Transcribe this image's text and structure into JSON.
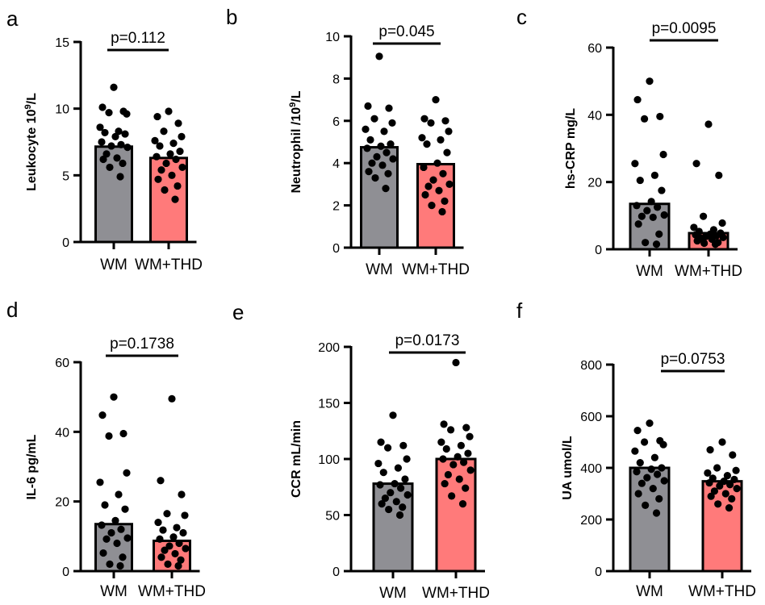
{
  "figure": {
    "bar_colors": [
      "#8f8f94",
      "#ff7a7a"
    ]
  },
  "chart_data": [
    {
      "panel": "a",
      "type": "bar",
      "ylabel": "Leukocyte 10",
      "ylabel_sup": "9",
      "ylabel_suffix": "/L",
      "ylim": [
        0,
        15
      ],
      "yticks": [
        0,
        5,
        10,
        15
      ],
      "categories": [
        "WM",
        "WM+THD"
      ],
      "values": [
        7.15,
        6.3
      ],
      "pvalue": "p=0.112",
      "points": [
        [
          11.6,
          10.1,
          9.8,
          9.7,
          9.6,
          8.6,
          8.3,
          8.2,
          8.1,
          7.9,
          7.5,
          7.3,
          7.2,
          7.1,
          6.6,
          6.3,
          6.2,
          5.9,
          5.6,
          4.9
        ],
        [
          9.8,
          9.4,
          8.9,
          8.3,
          7.9,
          7.6,
          7.4,
          7.2,
          6.8,
          6.6,
          6.4,
          6.2,
          5.9,
          5.6,
          5.4,
          5.0,
          4.7,
          4.2,
          3.9,
          3.2
        ]
      ]
    },
    {
      "panel": "b",
      "type": "bar",
      "ylabel": "Neutrophil  /10",
      "ylabel_sup": "9",
      "ylabel_suffix": "/L",
      "ylim": [
        0,
        10
      ],
      "yticks": [
        0,
        2,
        4,
        6,
        8,
        10
      ],
      "categories": [
        "WM",
        "WM+THD"
      ],
      "values": [
        4.75,
        3.95
      ],
      "pvalue": "p=0.045",
      "points": [
        [
          9.05,
          6.7,
          6.6,
          6.1,
          5.9,
          5.6,
          5.5,
          5.1,
          4.9,
          4.8,
          4.7,
          4.5,
          4.3,
          4.2,
          4.0,
          3.9,
          3.6,
          3.5,
          3.3,
          2.8
        ],
        [
          7.0,
          6.1,
          6.0,
          5.9,
          5.5,
          5.2,
          5.1,
          4.9,
          4.5,
          4.0,
          3.8,
          3.5,
          3.2,
          3.0,
          2.9,
          2.7,
          2.5,
          2.2,
          2.0,
          1.7
        ]
      ]
    },
    {
      "panel": "c",
      "type": "bar",
      "ylabel": "hs-CRP mg/L",
      "ylabel_sup": "",
      "ylabel_suffix": "",
      "ylim": [
        0,
        60
      ],
      "yticks": [
        0,
        20,
        40,
        60
      ],
      "categories": [
        "WM",
        "WM+THD"
      ],
      "values": [
        13.5,
        4.8
      ],
      "pvalue": "p=0.0095",
      "points": [
        [
          50,
          44.5,
          39.5,
          38.8,
          28.2,
          25.5,
          22.0,
          20.5,
          17.5,
          14.2,
          13.0,
          12.5,
          11.5,
          10.2,
          9.8,
          9.5,
          7.5,
          4.5,
          2.0,
          1.5
        ],
        [
          37.2,
          25.5,
          22.0,
          9.8,
          7.8,
          6.5,
          5.8,
          5.3,
          4.8,
          4.5,
          4.3,
          4.0,
          3.8,
          3.5,
          3.3,
          3.0,
          2.5,
          2.0,
          1.8,
          1.5
        ]
      ]
    },
    {
      "panel": "d",
      "type": "bar",
      "ylabel": "IL-6 pg/mL",
      "ylabel_sup": "",
      "ylabel_suffix": "",
      "ylim": [
        0,
        60
      ],
      "yticks": [
        0,
        20,
        40,
        60
      ],
      "categories": [
        "WM",
        "WM+THD"
      ],
      "values": [
        13.5,
        8.7
      ],
      "pvalue": "p=0.1738",
      "points": [
        [
          50,
          44.8,
          39.5,
          38.8,
          28.2,
          25.5,
          22.0,
          19.0,
          17.8,
          14.5,
          13.2,
          12.0,
          11.0,
          9.5,
          9.2,
          8.0,
          5.2,
          4.0,
          2.0,
          1.5
        ],
        [
          49.5,
          26.0,
          22.0,
          16.5,
          16.0,
          14.0,
          12.5,
          11.8,
          11.0,
          9.8,
          9.2,
          8.0,
          7.2,
          6.5,
          6.0,
          5.0,
          4.0,
          3.2,
          2.0,
          1.5
        ]
      ]
    },
    {
      "panel": "e",
      "type": "bar",
      "ylabel": "CCR mL/min",
      "ylabel_sup": "",
      "ylabel_suffix": "",
      "ylim": [
        0,
        200
      ],
      "yticks": [
        0,
        50,
        100,
        150,
        200
      ],
      "categories": [
        "WM",
        "WM+THD"
      ],
      "values": [
        78,
        100
      ],
      "pvalue": "p=0.0173",
      "points": [
        [
          139,
          115,
          112,
          110,
          100,
          96,
          92,
          88,
          82,
          78,
          77,
          74,
          70,
          68,
          65,
          62,
          60,
          57,
          55,
          50
        ],
        [
          186,
          131,
          128,
          126,
          120,
          115,
          112,
          109,
          105,
          102,
          100,
          97,
          95,
          90,
          86,
          82,
          78,
          74,
          67,
          60
        ]
      ]
    },
    {
      "panel": "f",
      "type": "bar",
      "ylabel": "UA umol/L",
      "ylabel_sup": "",
      "ylabel_suffix": "",
      "ylim": [
        0,
        800
      ],
      "yticks": [
        0,
        200,
        400,
        600,
        800
      ],
      "categories": [
        "WM",
        "WM+THD"
      ],
      "values": [
        400,
        348
      ],
      "pvalue": "p=0.0753",
      "points": [
        [
          573,
          545,
          505,
          500,
          490,
          465,
          440,
          420,
          400,
          395,
          385,
          375,
          362,
          350,
          340,
          320,
          300,
          280,
          255,
          225
        ],
        [
          500,
          470,
          450,
          400,
          390,
          380,
          370,
          360,
          355,
          348,
          342,
          335,
          330,
          320,
          310,
          300,
          290,
          280,
          260,
          245
        ]
      ]
    }
  ]
}
